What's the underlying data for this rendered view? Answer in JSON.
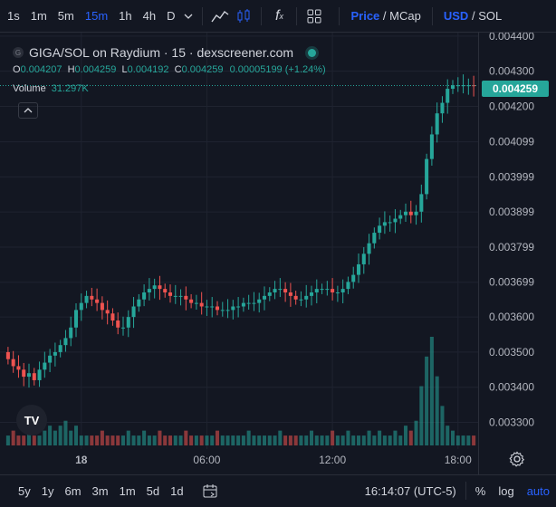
{
  "toolbar": {
    "timeframes": [
      "1s",
      "1m",
      "5m",
      "15m",
      "1h",
      "4h",
      "D"
    ],
    "active_timeframe": "15m",
    "fx_label": "f",
    "price_label": "Price",
    "separator": "/",
    "mcap_label": "MCap",
    "usd_label": "USD",
    "sol_label": "SOL"
  },
  "legend": {
    "title": "GIGA/SOL on Raydium · 15 · dexscreener.com",
    "logo_letter": "G",
    "ohlc": {
      "o": "0.004207",
      "h": "0.004259",
      "l": "0.004192",
      "c": "0.004259",
      "change": "0.00005199 (+1.24%)"
    },
    "volume_label": "Volume",
    "volume_value": "31.297K"
  },
  "price_tag": "0.004259",
  "tv_logo": "TV",
  "bottom": {
    "ranges": [
      "5y",
      "1y",
      "6m",
      "3m",
      "1m",
      "5d",
      "1d"
    ],
    "time": "16:14:07 (UTC-5)",
    "percent_label": "%",
    "log_label": "log",
    "auto_label": "auto"
  },
  "colors": {
    "up": "#26a69a",
    "down": "#ef5350",
    "background": "#131722",
    "grid": "#1f2330",
    "accent": "#2962ff"
  },
  "chart_data": {
    "type": "candlestick",
    "title": "GIGA/SOL on Raydium · 15 · dexscreener.com",
    "y_ticks": [
      "0.004400",
      "0.004300",
      "0.004200",
      "0.004099",
      "0.003999",
      "0.003899",
      "0.003799",
      "0.003699",
      "0.003600",
      "0.003500",
      "0.003400",
      "0.003300"
    ],
    "x_ticks": [
      {
        "label": "18",
        "index": 14
      },
      {
        "label": "06:00",
        "index": 38
      },
      {
        "label": "12:00",
        "index": 62
      },
      {
        "label": "18:00",
        "index": 86
      }
    ],
    "ylim": [
      0.00326,
      0.00441
    ],
    "candle_count": 90,
    "close": [
      0.00348,
      0.00346,
      0.00345,
      0.00343,
      0.00344,
      0.00342,
      0.00345,
      0.00347,
      0.00349,
      0.0035,
      0.00352,
      0.00354,
      0.00357,
      0.00362,
      0.00364,
      0.00366,
      0.00365,
      0.00364,
      0.00362,
      0.00361,
      0.00359,
      0.00357,
      0.00357,
      0.0036,
      0.00363,
      0.00365,
      0.00367,
      0.00368,
      0.00369,
      0.00368,
      0.00367,
      0.00366,
      0.00366,
      0.00366,
      0.00365,
      0.00364,
      0.00364,
      0.00363,
      0.00363,
      0.00363,
      0.00362,
      0.00362,
      0.00362,
      0.00363,
      0.00363,
      0.00364,
      0.00364,
      0.00364,
      0.00365,
      0.00366,
      0.00367,
      0.00368,
      0.00368,
      0.00367,
      0.00366,
      0.00365,
      0.00365,
      0.00366,
      0.00367,
      0.00368,
      0.00368,
      0.00368,
      0.00367,
      0.00367,
      0.00368,
      0.0037,
      0.00372,
      0.00375,
      0.00378,
      0.00381,
      0.00384,
      0.00386,
      0.00387,
      0.00387,
      0.00388,
      0.00389,
      0.0039,
      0.00389,
      0.0039,
      0.00395,
      0.00405,
      0.00412,
      0.00418,
      0.00421,
      0.00425,
      0.00426,
      0.00426,
      0.00426,
      0.00426,
      0.004259
    ],
    "volume": [
      2,
      3,
      2,
      2,
      3,
      2,
      2,
      3,
      4,
      3,
      4,
      5,
      3,
      4,
      2,
      2,
      2,
      2,
      3,
      2,
      2,
      2,
      2,
      3,
      2,
      2,
      3,
      2,
      2,
      3,
      2,
      2,
      2,
      2,
      3,
      2,
      2,
      2,
      2,
      2,
      3,
      2,
      2,
      2,
      2,
      2,
      3,
      2,
      2,
      2,
      2,
      2,
      3,
      2,
      2,
      2,
      2,
      2,
      3,
      2,
      2,
      2,
      3,
      2,
      2,
      3,
      2,
      2,
      2,
      3,
      2,
      3,
      2,
      2,
      3,
      2,
      4,
      3,
      5,
      12,
      18,
      22,
      14,
      8,
      4,
      3,
      2,
      2,
      2,
      2
    ]
  }
}
